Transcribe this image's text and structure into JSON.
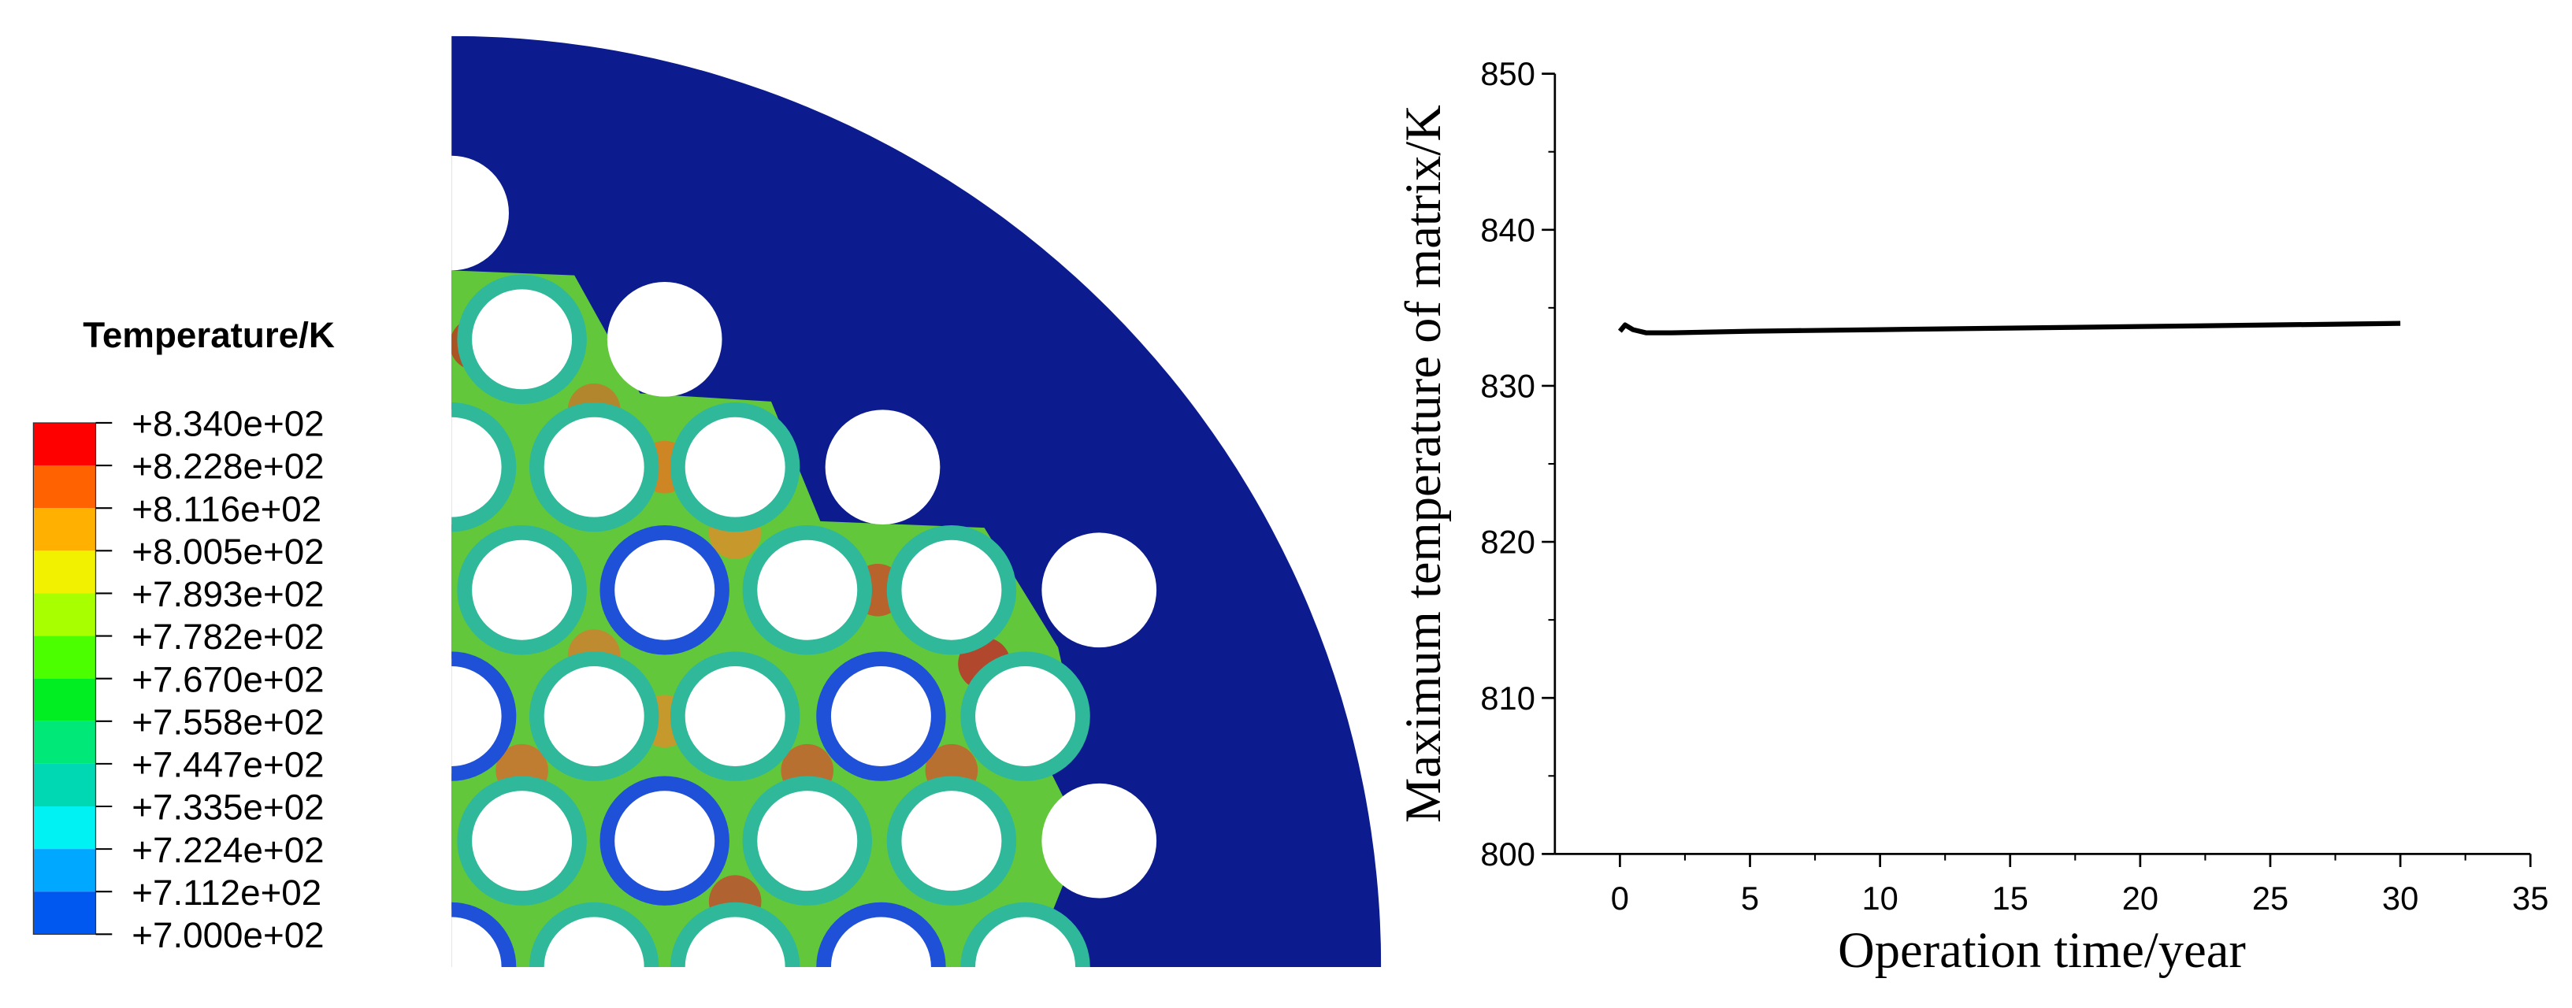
{
  "chart_data": [
    {
      "type": "contour",
      "legend_title": "Temperature/K",
      "levels": [
        {
          "value": 834.0,
          "label": "+8.340e+02"
        },
        {
          "value": 822.8,
          "label": "+8.228e+02"
        },
        {
          "value": 811.6,
          "label": "+8.116e+02"
        },
        {
          "value": 800.5,
          "label": "+8.005e+02"
        },
        {
          "value": 789.3,
          "label": "+7.893e+02"
        },
        {
          "value": 778.2,
          "label": "+7.782e+02"
        },
        {
          "value": 767.0,
          "label": "+7.670e+02"
        },
        {
          "value": 755.8,
          "label": "+7.558e+02"
        },
        {
          "value": 744.7,
          "label": "+7.447e+02"
        },
        {
          "value": 733.5,
          "label": "+7.335e+02"
        },
        {
          "value": 722.4,
          "label": "+7.224e+02"
        },
        {
          "value": 711.2,
          "label": "+7.112e+02"
        },
        {
          "value": 700.0,
          "label": "+7.000e+02"
        }
      ],
      "colors": [
        "#ff0000",
        "#ff6200",
        "#ffb000",
        "#f2f200",
        "#a8ff00",
        "#4cff00",
        "#00ee22",
        "#00e878",
        "#00d8b4",
        "#00f2f2",
        "#00a8ff",
        "#0058f0",
        "#0000ff"
      ]
    },
    {
      "type": "line",
      "x_label": "Operation time/year",
      "y_label": "Maximum temperature of matrix/K",
      "x": [
        0,
        0.2,
        0.5,
        1,
        2,
        5,
        10,
        15,
        20,
        25,
        30
      ],
      "values": [
        833.5,
        833.9,
        833.6,
        833.4,
        833.4,
        833.5,
        833.6,
        833.7,
        833.8,
        833.9,
        834.0
      ],
      "color": "#000000",
      "xlim": [
        -2.5,
        35
      ],
      "ylim": [
        800,
        850
      ],
      "xticks": [
        0,
        5,
        10,
        15,
        20,
        25,
        30,
        35
      ],
      "yticks": [
        800,
        810,
        820,
        830,
        840,
        850
      ]
    }
  ]
}
